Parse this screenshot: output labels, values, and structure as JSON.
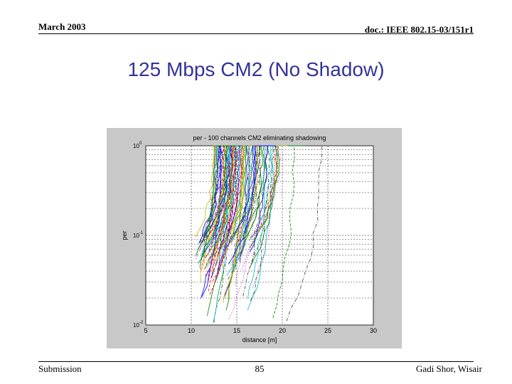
{
  "header": {
    "date": "March 2003",
    "doc_id": "doc.: IEEE 802.15-03/151r1"
  },
  "slide": {
    "title": "125 Mbps CM2 (No Shadow)"
  },
  "footer": {
    "left": "Submission",
    "page": "85",
    "right": "Gadi Shor, Wisair"
  },
  "colors": {
    "title": "#333399",
    "figure_bg": "#c8c8c8",
    "plot_bg": "#ffffff",
    "grid": "#000000",
    "series_palette": [
      "#0000ff",
      "#008000",
      "#ff0000",
      "#00bfbf",
      "#bf00bf",
      "#bfbf00",
      "#404040"
    ]
  },
  "chart_data": {
    "type": "line",
    "title": "per - 100 channels CM2 eliminating shadowing",
    "xlabel": "distance [m]",
    "ylabel": "per",
    "xlim": [
      5,
      30
    ],
    "ylim": [
      0.01,
      1
    ],
    "yscale": "log",
    "grid": true,
    "legend": "none",
    "x_ticks": [
      "5",
      "10",
      "15",
      "20",
      "25",
      "30"
    ],
    "y_ticks": [
      "10^0",
      "10^-1",
      "10^-2"
    ],
    "num_series": 100,
    "series_summary": "100 channel realizations; each PER curve starts at 1 near 10-18 m and drops toward 0.01 as distance decreases; most reach PER=1 by 15-17 m; outliers at ~21 m and ~24 m",
    "representative_series": [
      {
        "x": [
          10.6,
          11.2,
          12.0,
          13.2
        ],
        "y": [
          0.02,
          0.1,
          0.5,
          1
        ]
      },
      {
        "x": [
          12.5,
          13.0,
          13.8,
          15.0
        ],
        "y": [
          0.02,
          0.1,
          0.5,
          1
        ]
      },
      {
        "x": [
          14.8,
          15.3,
          16.1,
          17.2
        ],
        "y": [
          0.01,
          0.1,
          0.5,
          1
        ]
      },
      {
        "x": [
          16.6,
          17.0,
          17.7,
          18.8
        ],
        "y": [
          0.01,
          0.1,
          0.5,
          1
        ]
      },
      {
        "x": [
          19.0,
          19.5,
          20.2,
          21.0
        ],
        "y": [
          0.01,
          0.1,
          0.5,
          1
        ]
      },
      {
        "x": [
          20.4,
          21.0,
          22.4,
          24.1
        ],
        "y": [
          0.01,
          0.1,
          0.5,
          1
        ]
      }
    ]
  }
}
